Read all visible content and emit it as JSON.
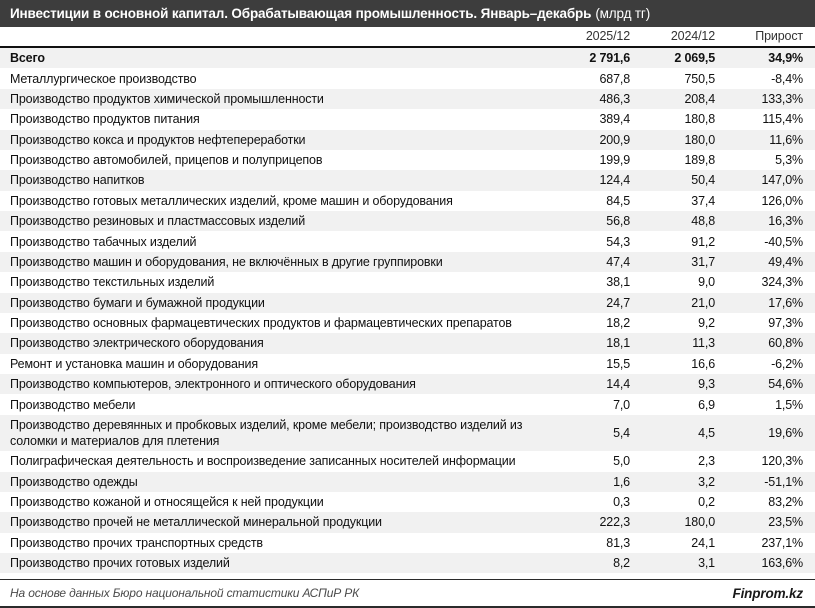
{
  "title": {
    "text": "Инвестиции в основной капитал. Обрабатывающая промышленность. Январь–декабрь",
    "unit": "(млрд тг)"
  },
  "columns": {
    "period_current": "2025/12",
    "period_previous": "2024/12",
    "growth": "Прирост"
  },
  "chart_data": {
    "type": "table",
    "title": "Инвестиции в основной капитал. Обрабатывающая промышленность. Январь–декабрь (млрд тг)",
    "columns": [
      "2025/12",
      "2024/12",
      "Прирост"
    ],
    "rows": [
      {
        "name": "Всего",
        "v2025": "2 791,6",
        "v2024": "2 069,5",
        "growth": "34,9%",
        "total": true
      },
      {
        "name": "Металлургическое производство",
        "v2025": "687,8",
        "v2024": "750,5",
        "growth": "-8,4%"
      },
      {
        "name": "Производство продуктов химической промышленности",
        "v2025": "486,3",
        "v2024": "208,4",
        "growth": "133,3%"
      },
      {
        "name": "Производство продуктов питания",
        "v2025": "389,4",
        "v2024": "180,8",
        "growth": "115,4%"
      },
      {
        "name": "Производство кокса и продуктов нефтепереработки",
        "v2025": "200,9",
        "v2024": "180,0",
        "growth": "11,6%"
      },
      {
        "name": "Производство автомобилей, прицепов и полуприцепов",
        "v2025": "199,9",
        "v2024": "189,8",
        "growth": "5,3%"
      },
      {
        "name": "Производство напитков",
        "v2025": "124,4",
        "v2024": "50,4",
        "growth": "147,0%"
      },
      {
        "name": "Производство готовых металлических изделий, кроме машин и оборудования",
        "v2025": "84,5",
        "v2024": "37,4",
        "growth": "126,0%"
      },
      {
        "name": "Производство резиновых и пластмассовых изделий",
        "v2025": "56,8",
        "v2024": "48,8",
        "growth": "16,3%"
      },
      {
        "name": "Производство табачных изделий",
        "v2025": "54,3",
        "v2024": "91,2",
        "growth": "-40,5%"
      },
      {
        "name": "Производство машин и оборудования, не включённых в другие группировки",
        "v2025": "47,4",
        "v2024": "31,7",
        "growth": "49,4%"
      },
      {
        "name": "Производство текстильных изделий",
        "v2025": "38,1",
        "v2024": "9,0",
        "growth": "324,3%"
      },
      {
        "name": "Производство бумаги и бумажной продукции",
        "v2025": "24,7",
        "v2024": "21,0",
        "growth": "17,6%"
      },
      {
        "name": "Производство основных фармацевтических продуктов и фармацевтических препаратов",
        "v2025": "18,2",
        "v2024": "9,2",
        "growth": "97,3%"
      },
      {
        "name": "Производство электрического оборудования",
        "v2025": "18,1",
        "v2024": "11,3",
        "growth": "60,8%"
      },
      {
        "name": "Ремонт и установка машин и оборудования",
        "v2025": "15,5",
        "v2024": "16,6",
        "growth": "-6,2%"
      },
      {
        "name": "Производство компьютеров, электронного и оптического оборудования",
        "v2025": "14,4",
        "v2024": "9,3",
        "growth": "54,6%"
      },
      {
        "name": "Производство мебели",
        "v2025": "7,0",
        "v2024": "6,9",
        "growth": "1,5%"
      },
      {
        "name": "Производство деревянных и пробковых изделий, кроме мебели; производство изделий из соломки и материалов для плетения",
        "v2025": "5,4",
        "v2024": "4,5",
        "growth": "19,6%"
      },
      {
        "name": "Полиграфическая деятельность и воспроизведение записанных носителей информации",
        "v2025": "5,0",
        "v2024": "2,3",
        "growth": "120,3%"
      },
      {
        "name": "Производство одежды",
        "v2025": "1,6",
        "v2024": "3,2",
        "growth": "-51,1%"
      },
      {
        "name": "Производство кожаной и относящейся к ней продукции",
        "v2025": "0,3",
        "v2024": "0,2",
        "growth": "83,2%"
      },
      {
        "name": "Производство прочей не металлической минеральной продукции",
        "v2025": "222,3",
        "v2024": "180,0",
        "growth": "23,5%"
      },
      {
        "name": "Производство прочих транспортных средств",
        "v2025": "81,3",
        "v2024": "24,1",
        "growth": "237,1%"
      },
      {
        "name": "Производство прочих готовых изделий",
        "v2025": "8,2",
        "v2024": "3,1",
        "growth": "163,6%"
      }
    ]
  },
  "footer": {
    "source": "На основе данных Бюро национальной статистики АСПиР РК",
    "brand": "Finprom.kz"
  },
  "colors": {
    "title_bar_bg": "#3D3D3D",
    "title_text": "#FFFFFF",
    "row_stripe": "#F1F1F1",
    "rule": "#111111",
    "footer_text": "#4A4A4A"
  }
}
